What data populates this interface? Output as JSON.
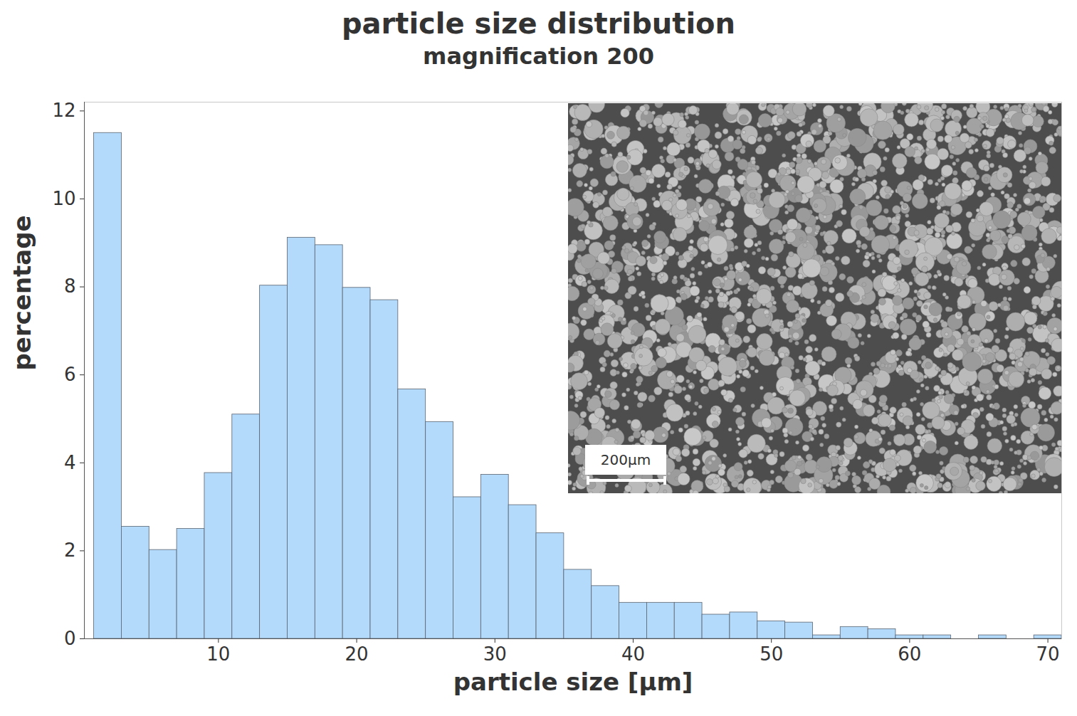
{
  "chart_data": {
    "type": "histogram",
    "title": "particle size distribution",
    "subtitle": "magnification 200",
    "x_label": "particle size [µm]",
    "y_label": "percentage",
    "bins": [
      1,
      3,
      5,
      7,
      9,
      11,
      13,
      15,
      17,
      19,
      21,
      23,
      25,
      27,
      29,
      31,
      33,
      35,
      37,
      39,
      41,
      43,
      45,
      47,
      49,
      51,
      53,
      55,
      57,
      59,
      61,
      63,
      65,
      67,
      69,
      71
    ],
    "values": [
      11.5,
      2.55,
      2.02,
      2.5,
      3.77,
      5.1,
      8.03,
      9.12,
      8.95,
      7.98,
      7.7,
      5.67,
      4.93,
      3.22,
      3.73,
      3.04,
      2.4,
      1.57,
      1.2,
      0.82,
      0.82,
      0.82,
      0.55,
      0.6,
      0.4,
      0.37,
      0.08,
      0.27,
      0.22,
      0.08,
      0.08,
      0,
      0.08,
      0,
      0.08
    ],
    "color": "#b3d9fb",
    "xlim": [
      0.3,
      71
    ],
    "ylim": [
      0,
      12.2
    ],
    "xticks": [
      10,
      20,
      30,
      40,
      50,
      60,
      70
    ],
    "yticks": [
      0,
      2,
      4,
      6,
      8,
      10,
      12
    ],
    "grid": false,
    "annotations": [
      "200µm"
    ]
  }
}
